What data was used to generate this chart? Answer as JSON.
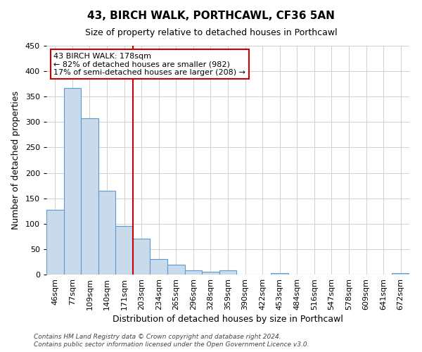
{
  "title": "43, BIRCH WALK, PORTHCAWL, CF36 5AN",
  "subtitle": "Size of property relative to detached houses in Porthcawl",
  "xlabel": "Distribution of detached houses by size in Porthcawl",
  "ylabel": "Number of detached properties",
  "bin_labels": [
    "46sqm",
    "77sqm",
    "109sqm",
    "140sqm",
    "171sqm",
    "203sqm",
    "234sqm",
    "265sqm",
    "296sqm",
    "328sqm",
    "359sqm",
    "390sqm",
    "422sqm",
    "453sqm",
    "484sqm",
    "516sqm",
    "547sqm",
    "578sqm",
    "609sqm",
    "641sqm",
    "672sqm"
  ],
  "bar_heights": [
    128,
    367,
    307,
    165,
    95,
    70,
    30,
    20,
    8,
    6,
    8,
    0,
    0,
    3,
    0,
    0,
    0,
    0,
    0,
    0,
    3
  ],
  "bar_color": "#c9daea",
  "bar_edge_color": "#5b9bd5",
  "vline_x_index": 4.5,
  "vline_color": "#cc0000",
  "annotation_text": "43 BIRCH WALK: 178sqm\n← 82% of detached houses are smaller (982)\n17% of semi-detached houses are larger (208) →",
  "annotation_box_color": "#ffffff",
  "annotation_box_edge": "#cc0000",
  "ylim": [
    0,
    450
  ],
  "yticks": [
    0,
    50,
    100,
    150,
    200,
    250,
    300,
    350,
    400,
    450
  ],
  "footer_line1": "Contains HM Land Registry data © Crown copyright and database right 2024.",
  "footer_line2": "Contains public sector information licensed under the Open Government Licence v3.0.",
  "bg_color": "#ffffff",
  "grid_color": "#d0d0d0",
  "title_fontsize": 11,
  "subtitle_fontsize": 9,
  "xlabel_fontsize": 9,
  "ylabel_fontsize": 9,
  "tick_fontsize": 8,
  "annotation_fontsize": 8,
  "footer_fontsize": 6.5
}
